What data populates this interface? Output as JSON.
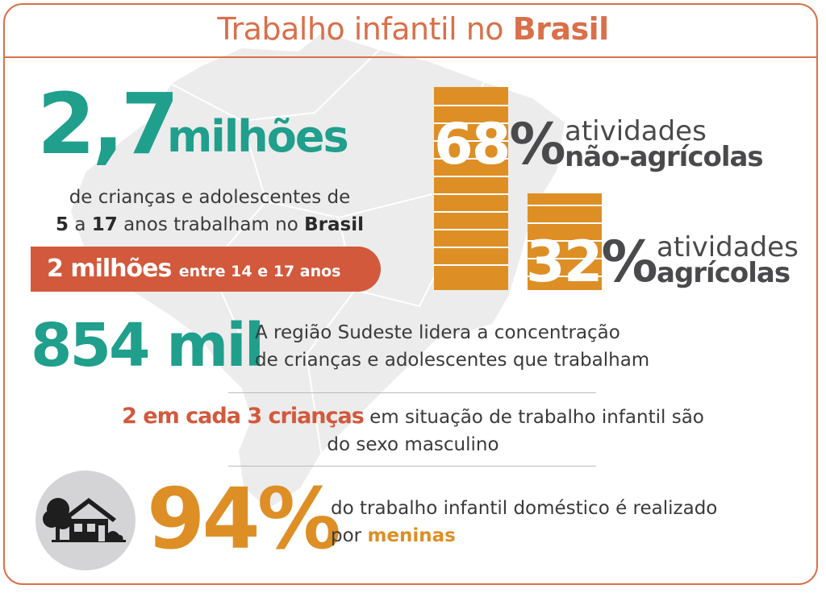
{
  "title": {
    "prefix": "Trabalho infantil no",
    "highlight": "Brasil"
  },
  "headline": {
    "number": "2,7",
    "unit": "milhões",
    "desc_line1": "de crianças e adolescentes de",
    "desc_age_from": "5",
    "desc_a": "a",
    "desc_age_to": "17",
    "desc_mid": "anos trabalham no",
    "desc_country": "Brasil"
  },
  "banner": {
    "number": "2 milhões",
    "detail": "entre 14 e 17 anos"
  },
  "activities": [
    {
      "value": 68,
      "percent_label": "68",
      "symbol": "%",
      "label_line1": "atividades",
      "label_line2": "não-agrícolas"
    },
    {
      "value": 32,
      "percent_label": "32",
      "symbol": "%",
      "label_line1": "atividades",
      "label_line2": "agrícolas"
    }
  ],
  "sudeste": {
    "number": "854 mil",
    "line1": "A região Sudeste lidera a concentração",
    "line2": "de crianças e adolescentes que trabalham"
  },
  "gender": {
    "highlight": "2 em cada 3 crianças",
    "line1_rest": "em situação de trabalho infantil são",
    "line2": "do sexo masculino"
  },
  "domestic": {
    "number": "94%",
    "line1": "do trabalho infantil doméstico é realizado",
    "line2_prefix": "por",
    "line2_highlight": "meninas",
    "icon": "house-icon"
  },
  "colors": {
    "accent_orange": "#d9704a",
    "teal": "#1f9f8c",
    "banner_red": "#d2593c",
    "bar_gold": "#dd8f26",
    "text_dark": "#3a3a3c",
    "map_gray": "#ececec"
  }
}
